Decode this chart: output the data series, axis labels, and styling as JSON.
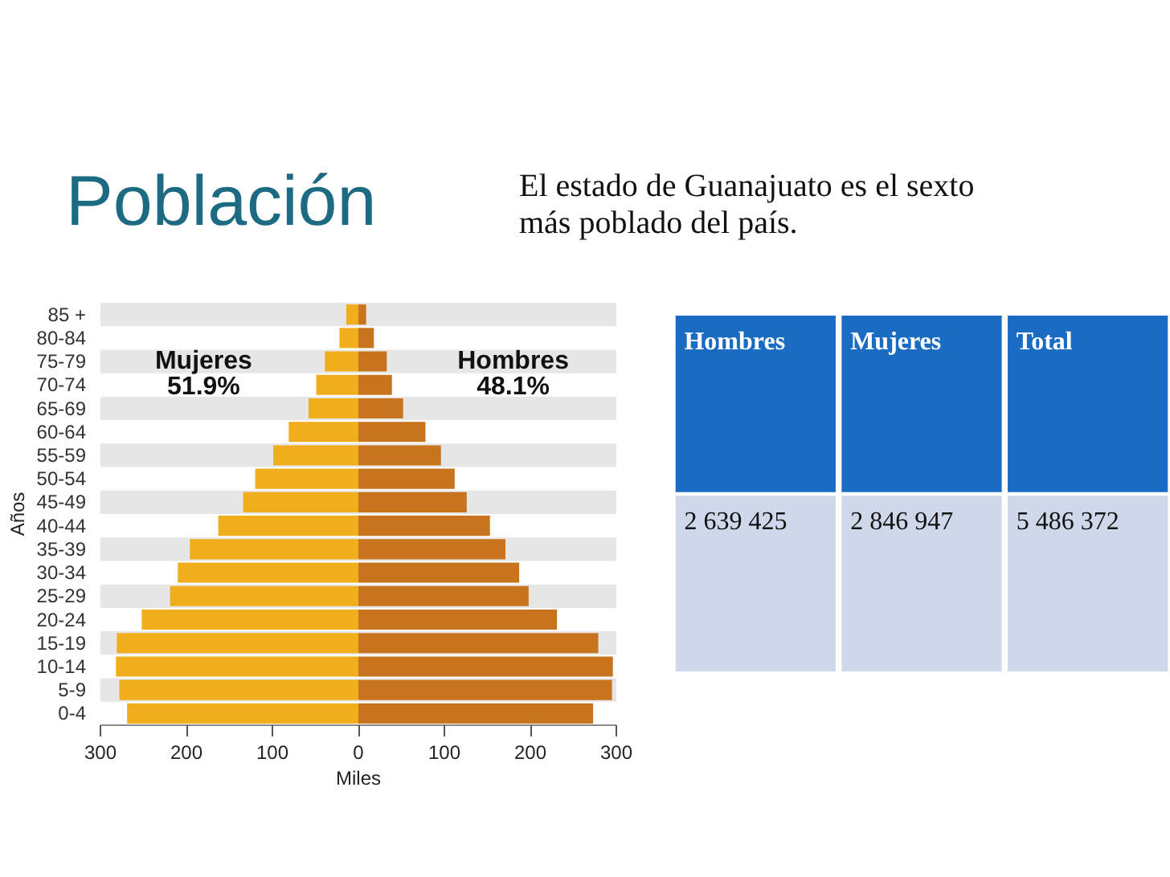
{
  "chart_data": [
    {
      "type": "bar",
      "orientation": "horizontal",
      "stacked": true,
      "title": "Población",
      "xlabel": "Miles",
      "ylabel": "Años",
      "categories": [
        "85 +",
        "80-84",
        "75-79",
        "70-74",
        "65-69",
        "60-64",
        "55-59",
        "50-54",
        "45-49",
        "40-44",
        "35-39",
        "30-34",
        "25-29",
        "20-24",
        "15-19",
        "10-14",
        "5-9",
        "0-4"
      ],
      "series": [
        {
          "name": "Mujeres",
          "color": "#f0ad1c",
          "values": [
            -14,
            -22,
            -39,
            -49,
            -58,
            -81,
            -99,
            -120,
            -134,
            -163,
            -196,
            -210,
            -219,
            -252,
            -281,
            -282,
            -278,
            -269
          ]
        },
        {
          "name": "Hombres",
          "color": "#c8741f",
          "values": [
            9,
            18,
            33,
            39,
            52,
            78,
            96,
            112,
            126,
            153,
            171,
            187,
            198,
            231,
            279,
            296,
            295,
            273
          ]
        }
      ],
      "xlim": [
        -300,
        300
      ],
      "xticks": [
        {
          "value": -300,
          "label": "300"
        },
        {
          "value": -200,
          "label": "200"
        },
        {
          "value": -100,
          "label": "100"
        },
        0,
        100,
        200,
        300
      ],
      "annotations": [
        "51.9%",
        "48.1%"
      ],
      "bands": [
        {
          "axis": "y",
          "from": "85 +",
          "to": "85 +",
          "color": "#e6e6e6"
        },
        {
          "axis": "y",
          "from": "75-79",
          "to": "75-79",
          "color": "#e6e6e6"
        },
        {
          "axis": "y",
          "from": "65-69",
          "to": "65-69",
          "color": "#e6e6e6"
        },
        {
          "axis": "y",
          "from": "55-59",
          "to": "55-59",
          "color": "#e6e6e6"
        },
        {
          "axis": "y",
          "from": "45-49",
          "to": "45-49",
          "color": "#e6e6e6"
        },
        {
          "axis": "y",
          "from": "35-39",
          "to": "35-39",
          "color": "#e6e6e6"
        },
        {
          "axis": "y",
          "from": "25-29",
          "to": "25-29",
          "color": "#e6e6e6"
        },
        {
          "axis": "y",
          "from": "15-19",
          "to": "15-19",
          "color": "#e6e6e6"
        },
        {
          "axis": "y",
          "from": "5-9",
          "to": "5-9",
          "color": "#e6e6e6"
        }
      ]
    },
    {
      "type": "other",
      "title": "El estado de Guanajuato es el sexto más poblado del país.",
      "categories": [
        "Hombres",
        "Mujeres",
        "Total"
      ],
      "values": [
        2639425,
        2846947,
        5486372
      ],
      "data_labels": true
    }
  ]
}
